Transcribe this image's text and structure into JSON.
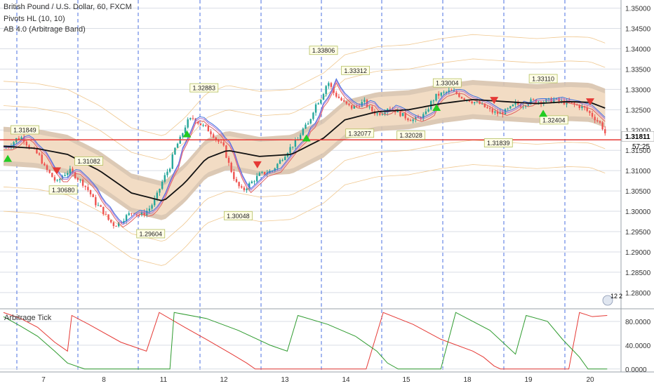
{
  "header": {
    "symbol": "British Pound / U.S. Dollar, 60, FXCM",
    "indicator_1": "Pivots HL (10, 10)",
    "indicator_2": "AB 4.0 (Arbitrage Band)"
  },
  "price_panel": {
    "current_price": "1.31811",
    "countdown": "57:25",
    "ticks": [
      "1.35000",
      "1.34500",
      "1.34000",
      "1.33500",
      "1.33000",
      "1.32500",
      "1.32000",
      "1.31500",
      "1.31000",
      "1.30500",
      "1.30000",
      "1.29500",
      "1.29000",
      "1.28500",
      "1.28000"
    ]
  },
  "oscillator_panel": {
    "name": "Arbitrage Tick",
    "ticks": [
      "80.0000",
      "40.0000",
      "0.0000"
    ],
    "top_value": "12",
    "top_value_2": "2"
  },
  "x_labels": [
    "7",
    "8",
    "11",
    "12",
    "13",
    "14",
    "15",
    "18",
    "19",
    "20"
  ],
  "colors": {
    "background": "#ffffff",
    "grid": "#d9dde5",
    "day_separator": "#4a6fe0",
    "up_candle": "#26a69a",
    "down_candle": "#ef5350",
    "band": "#f2dcc4",
    "band_edge": "#d8c3ad",
    "mid_line": "#111111",
    "price_line": "#e53935",
    "up_arrow": "#22cc22",
    "down_arrow": "#e53935",
    "osc_red": "#e53935",
    "osc_green": "#2e9b2e"
  },
  "chart_data": {
    "type": "candlestick",
    "title": "British Pound / U.S. Dollar, 60, FXCM",
    "ylim": [
      1.276,
      1.352
    ],
    "days": [
      "7",
      "8",
      "11",
      "12",
      "13",
      "14",
      "15",
      "18",
      "19",
      "20"
    ],
    "price_path": [
      [
        0,
        1.3155
      ],
      [
        0.03,
        1.3162
      ],
      [
        0.06,
        1.3178
      ],
      [
        0.09,
        1.3182
      ],
      [
        0.11,
        1.3165
      ],
      [
        0.14,
        1.315
      ],
      [
        0.17,
        1.3135
      ],
      [
        0.19,
        1.311
      ],
      [
        0.22,
        1.309
      ],
      [
        0.25,
        1.307
      ],
      [
        0.28,
        1.309
      ],
      [
        0.31,
        1.31
      ],
      [
        0.34,
        1.3085
      ],
      [
        0.37,
        1.307
      ],
      [
        0.4,
        1.305
      ],
      [
        0.43,
        1.302
      ],
      [
        0.46,
        1.3005
      ],
      [
        0.49,
        1.298
      ],
      [
        0.52,
        1.2965
      ],
      [
        0.55,
        1.2975
      ],
      [
        0.58,
        1.299
      ],
      [
        0.61,
        1.3
      ],
      [
        0.63,
        1.299
      ],
      [
        0.66,
        1.2995
      ],
      [
        0.69,
        1.301
      ],
      [
        0.72,
        1.304
      ],
      [
        0.75,
        1.308
      ],
      [
        0.78,
        1.311
      ],
      [
        0.8,
        1.315
      ],
      [
        0.83,
        1.318
      ],
      [
        0.86,
        1.322
      ],
      [
        0.89,
        1.323
      ],
      [
        0.92,
        1.3215
      ],
      [
        0.95,
        1.3205
      ],
      [
        0.98,
        1.319
      ],
      [
        1.0,
        1.3175
      ],
      [
        1.03,
        1.316
      ],
      [
        1.06,
        1.311
      ],
      [
        1.09,
        1.307
      ],
      [
        1.12,
        1.305
      ],
      [
        1.15,
        1.3065
      ],
      [
        1.18,
        1.308
      ],
      [
        1.2,
        1.309
      ],
      [
        1.23,
        1.3095
      ],
      [
        1.26,
        1.31
      ],
      [
        1.29,
        1.312
      ],
      [
        1.32,
        1.314
      ],
      [
        1.35,
        1.316
      ],
      [
        1.38,
        1.3175
      ],
      [
        1.4,
        1.32
      ],
      [
        1.43,
        1.3215
      ],
      [
        1.46,
        1.326
      ],
      [
        1.49,
        1.328
      ],
      [
        1.52,
        1.332
      ],
      [
        1.55,
        1.329
      ],
      [
        1.58,
        1.3275
      ],
      [
        1.6,
        1.3265
      ],
      [
        1.63,
        1.3255
      ],
      [
        1.66,
        1.326
      ],
      [
        1.69,
        1.327
      ],
      [
        1.72,
        1.325
      ],
      [
        1.75,
        1.324
      ],
      [
        1.78,
        1.3245
      ],
      [
        1.8,
        1.3255
      ],
      [
        1.83,
        1.325
      ],
      [
        1.86,
        1.324
      ],
      [
        1.89,
        1.323
      ],
      [
        1.92,
        1.3225
      ],
      [
        1.95,
        1.323
      ],
      [
        1.98,
        1.324
      ],
      [
        2.0,
        1.3265
      ],
      [
        2.03,
        1.3285
      ],
      [
        2.06,
        1.329
      ],
      [
        2.09,
        1.3295
      ],
      [
        2.12,
        1.3292
      ],
      [
        2.15,
        1.328
      ],
      [
        2.18,
        1.3275
      ],
      [
        2.2,
        1.327
      ],
      [
        2.23,
        1.3265
      ],
      [
        2.26,
        1.3255
      ],
      [
        2.29,
        1.3245
      ],
      [
        2.32,
        1.324
      ],
      [
        2.35,
        1.3245
      ],
      [
        2.38,
        1.3255
      ],
      [
        2.4,
        1.3265
      ],
      [
        2.43,
        1.326
      ],
      [
        2.46,
        1.327
      ],
      [
        2.49,
        1.3272
      ],
      [
        2.52,
        1.327
      ],
      [
        2.55,
        1.3272
      ],
      [
        2.58,
        1.3275
      ],
      [
        2.61,
        1.327
      ],
      [
        2.63,
        1.3268
      ],
      [
        2.66,
        1.3265
      ],
      [
        2.69,
        1.326
      ],
      [
        2.72,
        1.3255
      ],
      [
        2.75,
        1.324
      ],
      [
        2.78,
        1.3225
      ],
      [
        2.8,
        1.3215
      ],
      [
        2.83,
        1.3181
      ]
    ],
    "mid_line": [
      [
        0,
        1.316
      ],
      [
        0.15,
        1.3155
      ],
      [
        0.3,
        1.314
      ],
      [
        0.45,
        1.31
      ],
      [
        0.6,
        1.3045
      ],
      [
        0.75,
        1.3025
      ],
      [
        0.85,
        1.307
      ],
      [
        0.95,
        1.313
      ],
      [
        1.05,
        1.315
      ],
      [
        1.2,
        1.3135
      ],
      [
        1.35,
        1.314
      ],
      [
        1.5,
        1.318
      ],
      [
        1.6,
        1.3225
      ],
      [
        1.75,
        1.3245
      ],
      [
        1.9,
        1.325
      ],
      [
        2.05,
        1.3265
      ],
      [
        2.2,
        1.3275
      ],
      [
        2.35,
        1.327
      ],
      [
        2.5,
        1.3265
      ],
      [
        2.65,
        1.327
      ],
      [
        2.75,
        1.3268
      ],
      [
        2.83,
        1.3252
      ]
    ],
    "band_width": 0.0016,
    "band_outer": 0.0048,
    "pivot_labels": [
      {
        "t": 0.1,
        "price": 1.31849,
        "label": "1.31849",
        "pos": "above"
      },
      {
        "t": 0.28,
        "price": 1.3068,
        "label": "1.30680",
        "pos": "below"
      },
      {
        "t": 0.4,
        "price": 1.31082,
        "label": "1.31082",
        "pos": "above"
      },
      {
        "t": 0.69,
        "price": 1.29604,
        "label": "1.29604",
        "pos": "below"
      },
      {
        "t": 0.94,
        "price": 1.32883,
        "label": "1.32883",
        "pos": "above"
      },
      {
        "t": 1.1,
        "price": 1.30048,
        "label": "1.30048",
        "pos": "below"
      },
      {
        "t": 1.5,
        "price": 1.33806,
        "label": "1.33806",
        "pos": "above"
      },
      {
        "t": 1.65,
        "price": 1.33312,
        "label": "1.33312",
        "pos": "above"
      },
      {
        "t": 1.67,
        "price": 1.32077,
        "label": "1.32077",
        "pos": "below"
      },
      {
        "t": 1.91,
        "price": 1.32028,
        "label": "1.32028",
        "pos": "below"
      },
      {
        "t": 2.08,
        "price": 1.33004,
        "label": "1.33004",
        "pos": "above"
      },
      {
        "t": 2.32,
        "price": 1.31839,
        "label": "1.31839",
        "pos": "below"
      },
      {
        "t": 2.53,
        "price": 1.3311,
        "label": "1.33110",
        "pos": "above"
      },
      {
        "t": 2.58,
        "price": 1.32404,
        "label": "1.32404",
        "pos": "below"
      }
    ],
    "up_arrows": [
      0.02,
      0.86,
      1.42,
      2.03,
      2.53
    ],
    "down_arrows": [
      0.25,
      1.19,
      2.3,
      2.75
    ],
    "current_price": 1.31811,
    "oscillator": {
      "ylim": [
        -5,
        100
      ],
      "red": [
        [
          0,
          95
        ],
        [
          0.08,
          85
        ],
        [
          0.16,
          70
        ],
        [
          0.24,
          45
        ],
        [
          0.3,
          30
        ],
        [
          0.32,
          90
        ],
        [
          0.4,
          75
        ],
        [
          0.55,
          45
        ],
        [
          0.67,
          30
        ],
        [
          0.73,
          95
        ],
        [
          0.85,
          70
        ],
        [
          0.95,
          50
        ],
        [
          1.07,
          25
        ],
        [
          1.14,
          10
        ],
        [
          1.18,
          0
        ],
        [
          1.3,
          0
        ],
        [
          1.45,
          0
        ],
        [
          1.7,
          0
        ],
        [
          1.78,
          95
        ],
        [
          1.92,
          75
        ],
        [
          2.05,
          50
        ],
        [
          2.2,
          30
        ],
        [
          2.25,
          20
        ],
        [
          2.3,
          5
        ],
        [
          2.33,
          0
        ],
        [
          2.45,
          0
        ],
        [
          2.55,
          0
        ],
        [
          2.65,
          0
        ],
        [
          2.7,
          95
        ],
        [
          2.76,
          88
        ],
        [
          2.83,
          90
        ]
      ],
      "green": [
        [
          0,
          88
        ],
        [
          0.08,
          72
        ],
        [
          0.16,
          55
        ],
        [
          0.24,
          30
        ],
        [
          0.3,
          10
        ],
        [
          0.38,
          0
        ],
        [
          0.55,
          0
        ],
        [
          0.7,
          0
        ],
        [
          0.78,
          0
        ],
        [
          0.8,
          95
        ],
        [
          0.95,
          85
        ],
        [
          1.1,
          65
        ],
        [
          1.25,
          40
        ],
        [
          1.33,
          30
        ],
        [
          1.38,
          90
        ],
        [
          1.52,
          75
        ],
        [
          1.65,
          55
        ],
        [
          1.75,
          30
        ],
        [
          1.8,
          10
        ],
        [
          1.85,
          0
        ],
        [
          2.05,
          0
        ],
        [
          2.12,
          95
        ],
        [
          2.28,
          65
        ],
        [
          2.4,
          25
        ],
        [
          2.45,
          90
        ],
        [
          2.55,
          80
        ],
        [
          2.62,
          50
        ],
        [
          2.7,
          20
        ],
        [
          2.74,
          0
        ],
        [
          2.83,
          0
        ]
      ]
    }
  }
}
